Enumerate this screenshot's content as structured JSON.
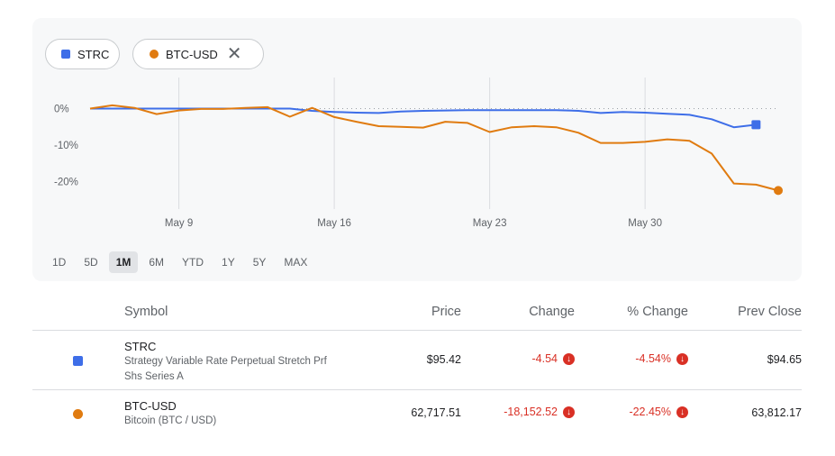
{
  "legend": {
    "chips": [
      {
        "label": "STRC",
        "color": "#3e6ee8"
      },
      {
        "label": "BTC-USD",
        "color": "#e07b10",
        "close": "✕"
      }
    ]
  },
  "ranges": [
    "1D",
    "5D",
    "1M",
    "6M",
    "YTD",
    "1Y",
    "5Y",
    "MAX"
  ],
  "active_range": "1M",
  "chart_data": {
    "type": "line",
    "y_tick_labels": [
      "0%",
      "-10%",
      "-20%"
    ],
    "y_ticks": [
      0,
      -10,
      -20
    ],
    "ylim": [
      -27,
      10
    ],
    "x_tick_labels": [
      "May 9",
      "May 16",
      "May 23",
      "May 30"
    ],
    "x_ticks": [
      9,
      16,
      23,
      30
    ],
    "xlim": [
      5,
      36
    ],
    "grid": "vertical",
    "baseline": 0,
    "series": [
      {
        "name": "STRC",
        "color": "#3e6ee8",
        "marker": "square",
        "points": [
          [
            5.0,
            0.0
          ],
          [
            6.0,
            0.0
          ],
          [
            7.0,
            0.0
          ],
          [
            8.0,
            0.0
          ],
          [
            9.0,
            0.0
          ],
          [
            10.0,
            0.0
          ],
          [
            11.0,
            0.0
          ],
          [
            12.0,
            0.0
          ],
          [
            13.0,
            0.0
          ],
          [
            14.0,
            0.0
          ],
          [
            15.0,
            -0.6
          ],
          [
            16.0,
            -0.9
          ],
          [
            17.0,
            -1.1
          ],
          [
            18.0,
            -1.2
          ],
          [
            19.0,
            -0.8
          ],
          [
            20.0,
            -0.6
          ],
          [
            21.0,
            -0.5
          ],
          [
            22.0,
            -0.4
          ],
          [
            23.0,
            -0.4
          ],
          [
            24.0,
            -0.4
          ],
          [
            25.0,
            -0.4
          ],
          [
            26.0,
            -0.4
          ],
          [
            27.0,
            -0.6
          ],
          [
            28.0,
            -1.2
          ],
          [
            29.0,
            -0.9
          ],
          [
            30.0,
            -1.1
          ],
          [
            31.0,
            -1.4
          ],
          [
            32.0,
            -1.7
          ],
          [
            33.0,
            -2.9
          ],
          [
            34.0,
            -5.1
          ],
          [
            35.0,
            -4.4
          ]
        ]
      },
      {
        "name": "BTC-USD",
        "color": "#e07b10",
        "marker": "circle",
        "points": [
          [
            5.0,
            0.0
          ],
          [
            6.0,
            0.9
          ],
          [
            7.0,
            0.2
          ],
          [
            8.0,
            -1.5
          ],
          [
            9.0,
            -0.5
          ],
          [
            10.0,
            -0.1
          ],
          [
            11.0,
            -0.1
          ],
          [
            12.0,
            0.2
          ],
          [
            13.0,
            0.4
          ],
          [
            14.0,
            -2.2
          ],
          [
            15.0,
            0.2
          ],
          [
            16.0,
            -2.3
          ],
          [
            17.0,
            -3.6
          ],
          [
            18.0,
            -4.8
          ],
          [
            19.0,
            -5.0
          ],
          [
            20.0,
            -5.2
          ],
          [
            21.0,
            -3.6
          ],
          [
            22.0,
            -3.9
          ],
          [
            23.0,
            -6.4
          ],
          [
            24.0,
            -5.1
          ],
          [
            25.0,
            -4.8
          ],
          [
            26.0,
            -5.1
          ],
          [
            27.0,
            -6.6
          ],
          [
            28.0,
            -9.4
          ],
          [
            29.0,
            -9.4
          ],
          [
            30.0,
            -9.1
          ],
          [
            31.0,
            -8.4
          ],
          [
            32.0,
            -8.8
          ],
          [
            33.0,
            -12.3
          ],
          [
            34.0,
            -20.5
          ],
          [
            35.0,
            -20.8
          ],
          [
            36.0,
            -22.4
          ]
        ]
      }
    ]
  },
  "table": {
    "headers": {
      "symbol": "Symbol",
      "price": "Price",
      "change": "Change",
      "pct": "% Change",
      "prev": "Prev Close"
    },
    "rows": [
      {
        "symbol": "STRC",
        "name_line1": "Strategy Variable Rate Perpetual Stretch Prf",
        "name_line2": "Shs Series A",
        "price": "$95.42",
        "change": "-4.54",
        "pct": "-4.54%",
        "prev": "$94.65",
        "color": "#3e6ee8"
      },
      {
        "symbol": "BTC-USD",
        "name_line1": "Bitcoin (BTC / USD)",
        "price": "62,717.51",
        "change": "-18,152.52",
        "pct": "-22.45%",
        "prev": "63,812.17",
        "color": "#e07b10"
      }
    ]
  }
}
